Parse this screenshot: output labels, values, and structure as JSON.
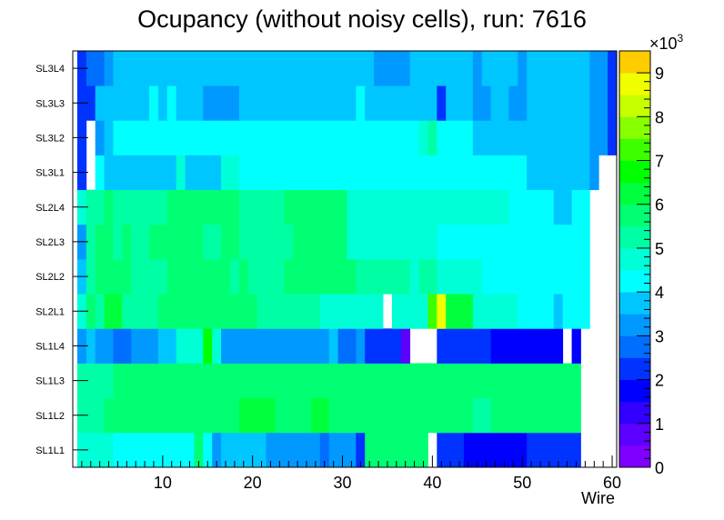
{
  "chart_data": {
    "type": "heatmap",
    "title": "Ocupancy (without noisy cells), run: 7616",
    "xlabel": "Wire",
    "ylabel": "",
    "xlim": [
      0,
      60.5
    ],
    "x_ticks": [
      10,
      20,
      30,
      40,
      50,
      60
    ],
    "y_categories": [
      "SL1L1",
      "SL1L2",
      "SL1L3",
      "SL1L4",
      "SL2L1",
      "SL2L2",
      "SL2L3",
      "SL2L4",
      "SL3L1",
      "SL3L2",
      "SL3L3",
      "SL3L4"
    ],
    "z_range": [
      0,
      9500
    ],
    "z_ticks": [
      0,
      1,
      2,
      3,
      4,
      5,
      6,
      7,
      8,
      9
    ],
    "z_exponent_label": "×10",
    "z_exponent": "3",
    "cells": [
      {
        "row": "SL1L1",
        "segments": [
          [
            1,
            4,
            4700
          ],
          [
            5,
            13,
            4000
          ],
          [
            14,
            14,
            5500
          ],
          [
            15,
            15,
            4300
          ],
          [
            16,
            16,
            3200
          ],
          [
            17,
            21,
            3500
          ],
          [
            22,
            27,
            3000
          ],
          [
            28,
            28,
            2500
          ],
          [
            29,
            31,
            3000
          ],
          [
            32,
            32,
            2000
          ],
          [
            33,
            39,
            5500
          ],
          [
            40,
            40,
            null
          ],
          [
            41,
            43,
            2300
          ],
          [
            44,
            50,
            1800
          ],
          [
            51,
            54,
            2300
          ],
          [
            55,
            56,
            2000
          ],
          [
            57,
            60,
            null
          ]
        ]
      },
      {
        "row": "SL1L2",
        "segments": [
          [
            1,
            3,
            5300
          ],
          [
            4,
            18,
            5800
          ],
          [
            19,
            22,
            6100
          ],
          [
            23,
            26,
            5800
          ],
          [
            27,
            28,
            6100
          ],
          [
            29,
            44,
            5800
          ],
          [
            45,
            46,
            5000
          ],
          [
            47,
            56,
            5600
          ],
          [
            57,
            60,
            null
          ]
        ]
      },
      {
        "row": "SL1L3",
        "segments": [
          [
            1,
            4,
            5300
          ],
          [
            5,
            56,
            5900
          ],
          [
            57,
            60,
            null
          ]
        ]
      },
      {
        "row": "SL1L4",
        "segments": [
          [
            1,
            1,
            3200
          ],
          [
            2,
            2,
            3800
          ],
          [
            3,
            4,
            3200
          ],
          [
            5,
            6,
            2800
          ],
          [
            7,
            9,
            3200
          ],
          [
            10,
            11,
            3800
          ],
          [
            12,
            14,
            4500
          ],
          [
            15,
            15,
            6800
          ],
          [
            16,
            16,
            4500
          ],
          [
            17,
            24,
            3300
          ],
          [
            25,
            28,
            3000
          ],
          [
            29,
            29,
            3500
          ],
          [
            30,
            31,
            2800
          ],
          [
            32,
            32,
            3400
          ],
          [
            33,
            34,
            2300
          ],
          [
            35,
            36,
            2000
          ],
          [
            37,
            37,
            700
          ],
          [
            38,
            40,
            null
          ],
          [
            41,
            41,
            2000
          ],
          [
            42,
            43,
            2300
          ],
          [
            44,
            46,
            2000
          ],
          [
            47,
            54,
            1700
          ],
          [
            55,
            55,
            null
          ],
          [
            56,
            56,
            1700
          ],
          [
            57,
            60,
            null
          ]
        ]
      },
      {
        "row": "SL2L1",
        "segments": [
          [
            1,
            1,
            4700
          ],
          [
            2,
            2,
            5600
          ],
          [
            3,
            3,
            5000
          ],
          [
            4,
            5,
            6400
          ],
          [
            6,
            6,
            5300
          ],
          [
            7,
            9,
            5100
          ],
          [
            10,
            20,
            5900
          ],
          [
            21,
            27,
            5000
          ],
          [
            28,
            34,
            4700
          ],
          [
            35,
            35,
            null
          ],
          [
            36,
            39,
            4900
          ],
          [
            40,
            40,
            7300
          ],
          [
            41,
            41,
            8900
          ],
          [
            42,
            44,
            6000
          ],
          [
            45,
            49,
            4800
          ],
          [
            50,
            53,
            4100
          ],
          [
            54,
            54,
            3800
          ],
          [
            55,
            57,
            4000
          ],
          [
            58,
            60,
            null
          ]
        ]
      },
      {
        "row": "SL2L2",
        "segments": [
          [
            1,
            1,
            3500
          ],
          [
            2,
            2,
            5100
          ],
          [
            3,
            3,
            5600
          ],
          [
            4,
            6,
            5900
          ],
          [
            7,
            10,
            5100
          ],
          [
            11,
            17,
            5800
          ],
          [
            18,
            18,
            5100
          ],
          [
            19,
            19,
            5800
          ],
          [
            20,
            23,
            5100
          ],
          [
            24,
            31,
            5800
          ],
          [
            32,
            37,
            5000
          ],
          [
            38,
            38,
            4700
          ],
          [
            39,
            40,
            5300
          ],
          [
            41,
            45,
            4800
          ],
          [
            46,
            57,
            4000
          ],
          [
            58,
            60,
            null
          ]
        ]
      },
      {
        "row": "SL2L3",
        "segments": [
          [
            1,
            1,
            3300
          ],
          [
            2,
            2,
            5100
          ],
          [
            3,
            4,
            5600
          ],
          [
            5,
            5,
            5100
          ],
          [
            6,
            6,
            5600
          ],
          [
            7,
            8,
            5300
          ],
          [
            9,
            14,
            5600
          ],
          [
            15,
            16,
            5100
          ],
          [
            17,
            18,
            5600
          ],
          [
            19,
            19,
            5100
          ],
          [
            20,
            24,
            5300
          ],
          [
            25,
            30,
            5800
          ],
          [
            31,
            40,
            4800
          ],
          [
            41,
            43,
            4000
          ],
          [
            44,
            57,
            4000
          ],
          [
            58,
            60,
            null
          ]
        ]
      },
      {
        "row": "SL2L4",
        "segments": [
          [
            1,
            1,
            4600
          ],
          [
            2,
            3,
            5300
          ],
          [
            4,
            4,
            5500
          ],
          [
            5,
            5,
            5200
          ],
          [
            6,
            7,
            5400
          ],
          [
            8,
            10,
            5300
          ],
          [
            11,
            18,
            5600
          ],
          [
            19,
            23,
            5200
          ],
          [
            24,
            30,
            5800
          ],
          [
            31,
            48,
            4700
          ],
          [
            49,
            49,
            4000
          ],
          [
            50,
            53,
            4100
          ],
          [
            54,
            55,
            3700
          ],
          [
            56,
            57,
            4000
          ],
          [
            58,
            60,
            null
          ]
        ]
      },
      {
        "row": "SL3L1",
        "segments": [
          [
            1,
            1,
            2300
          ],
          [
            2,
            2,
            null
          ],
          [
            3,
            3,
            4300
          ],
          [
            4,
            11,
            3800
          ],
          [
            12,
            12,
            4500
          ],
          [
            13,
            16,
            3700
          ],
          [
            17,
            18,
            4500
          ],
          [
            19,
            24,
            4000
          ],
          [
            25,
            48,
            4200
          ],
          [
            49,
            50,
            4000
          ],
          [
            51,
            55,
            3800
          ],
          [
            56,
            57,
            3600
          ],
          [
            58,
            58,
            3200
          ],
          [
            59,
            60,
            null
          ]
        ]
      },
      {
        "row": "SL3L2",
        "segments": [
          [
            1,
            1,
            2200
          ],
          [
            2,
            2,
            null
          ],
          [
            3,
            3,
            3300
          ],
          [
            4,
            4,
            3500
          ],
          [
            5,
            38,
            4000
          ],
          [
            39,
            39,
            4600
          ],
          [
            40,
            40,
            5000
          ],
          [
            41,
            44,
            4000
          ],
          [
            45,
            46,
            3600
          ],
          [
            47,
            52,
            3800
          ],
          [
            53,
            54,
            3500
          ],
          [
            55,
            57,
            3600
          ],
          [
            58,
            59,
            3200
          ],
          [
            60,
            60,
            2300
          ]
        ]
      },
      {
        "row": "SL3L3",
        "segments": [
          [
            1,
            2,
            2300
          ],
          [
            3,
            4,
            3700
          ],
          [
            5,
            8,
            3800
          ],
          [
            9,
            9,
            4300
          ],
          [
            10,
            10,
            3600
          ],
          [
            11,
            11,
            4300
          ],
          [
            12,
            14,
            3800
          ],
          [
            15,
            18,
            3400
          ],
          [
            19,
            30,
            3900
          ],
          [
            31,
            31,
            3500
          ],
          [
            32,
            32,
            4300
          ],
          [
            33,
            38,
            3800
          ],
          [
            39,
            40,
            3600
          ],
          [
            41,
            41,
            2300
          ],
          [
            42,
            44,
            3600
          ],
          [
            45,
            46,
            3200
          ],
          [
            47,
            48,
            3800
          ],
          [
            49,
            50,
            3200
          ],
          [
            51,
            57,
            3600
          ],
          [
            58,
            59,
            3200
          ],
          [
            60,
            60,
            2300
          ]
        ]
      },
      {
        "row": "SL3L4",
        "segments": [
          [
            1,
            1,
            2100
          ],
          [
            2,
            3,
            2700
          ],
          [
            4,
            4,
            3000
          ],
          [
            5,
            21,
            3500
          ],
          [
            22,
            22,
            3900
          ],
          [
            23,
            29,
            3500
          ],
          [
            30,
            30,
            3900
          ],
          [
            31,
            32,
            3500
          ],
          [
            33,
            33,
            3900
          ],
          [
            34,
            37,
            3300
          ],
          [
            38,
            39,
            3900
          ],
          [
            40,
            44,
            3500
          ],
          [
            45,
            45,
            3000
          ],
          [
            46,
            49,
            3500
          ],
          [
            50,
            50,
            3300
          ],
          [
            51,
            57,
            3500
          ],
          [
            58,
            59,
            3200
          ],
          [
            60,
            60,
            2300
          ]
        ]
      }
    ]
  }
}
